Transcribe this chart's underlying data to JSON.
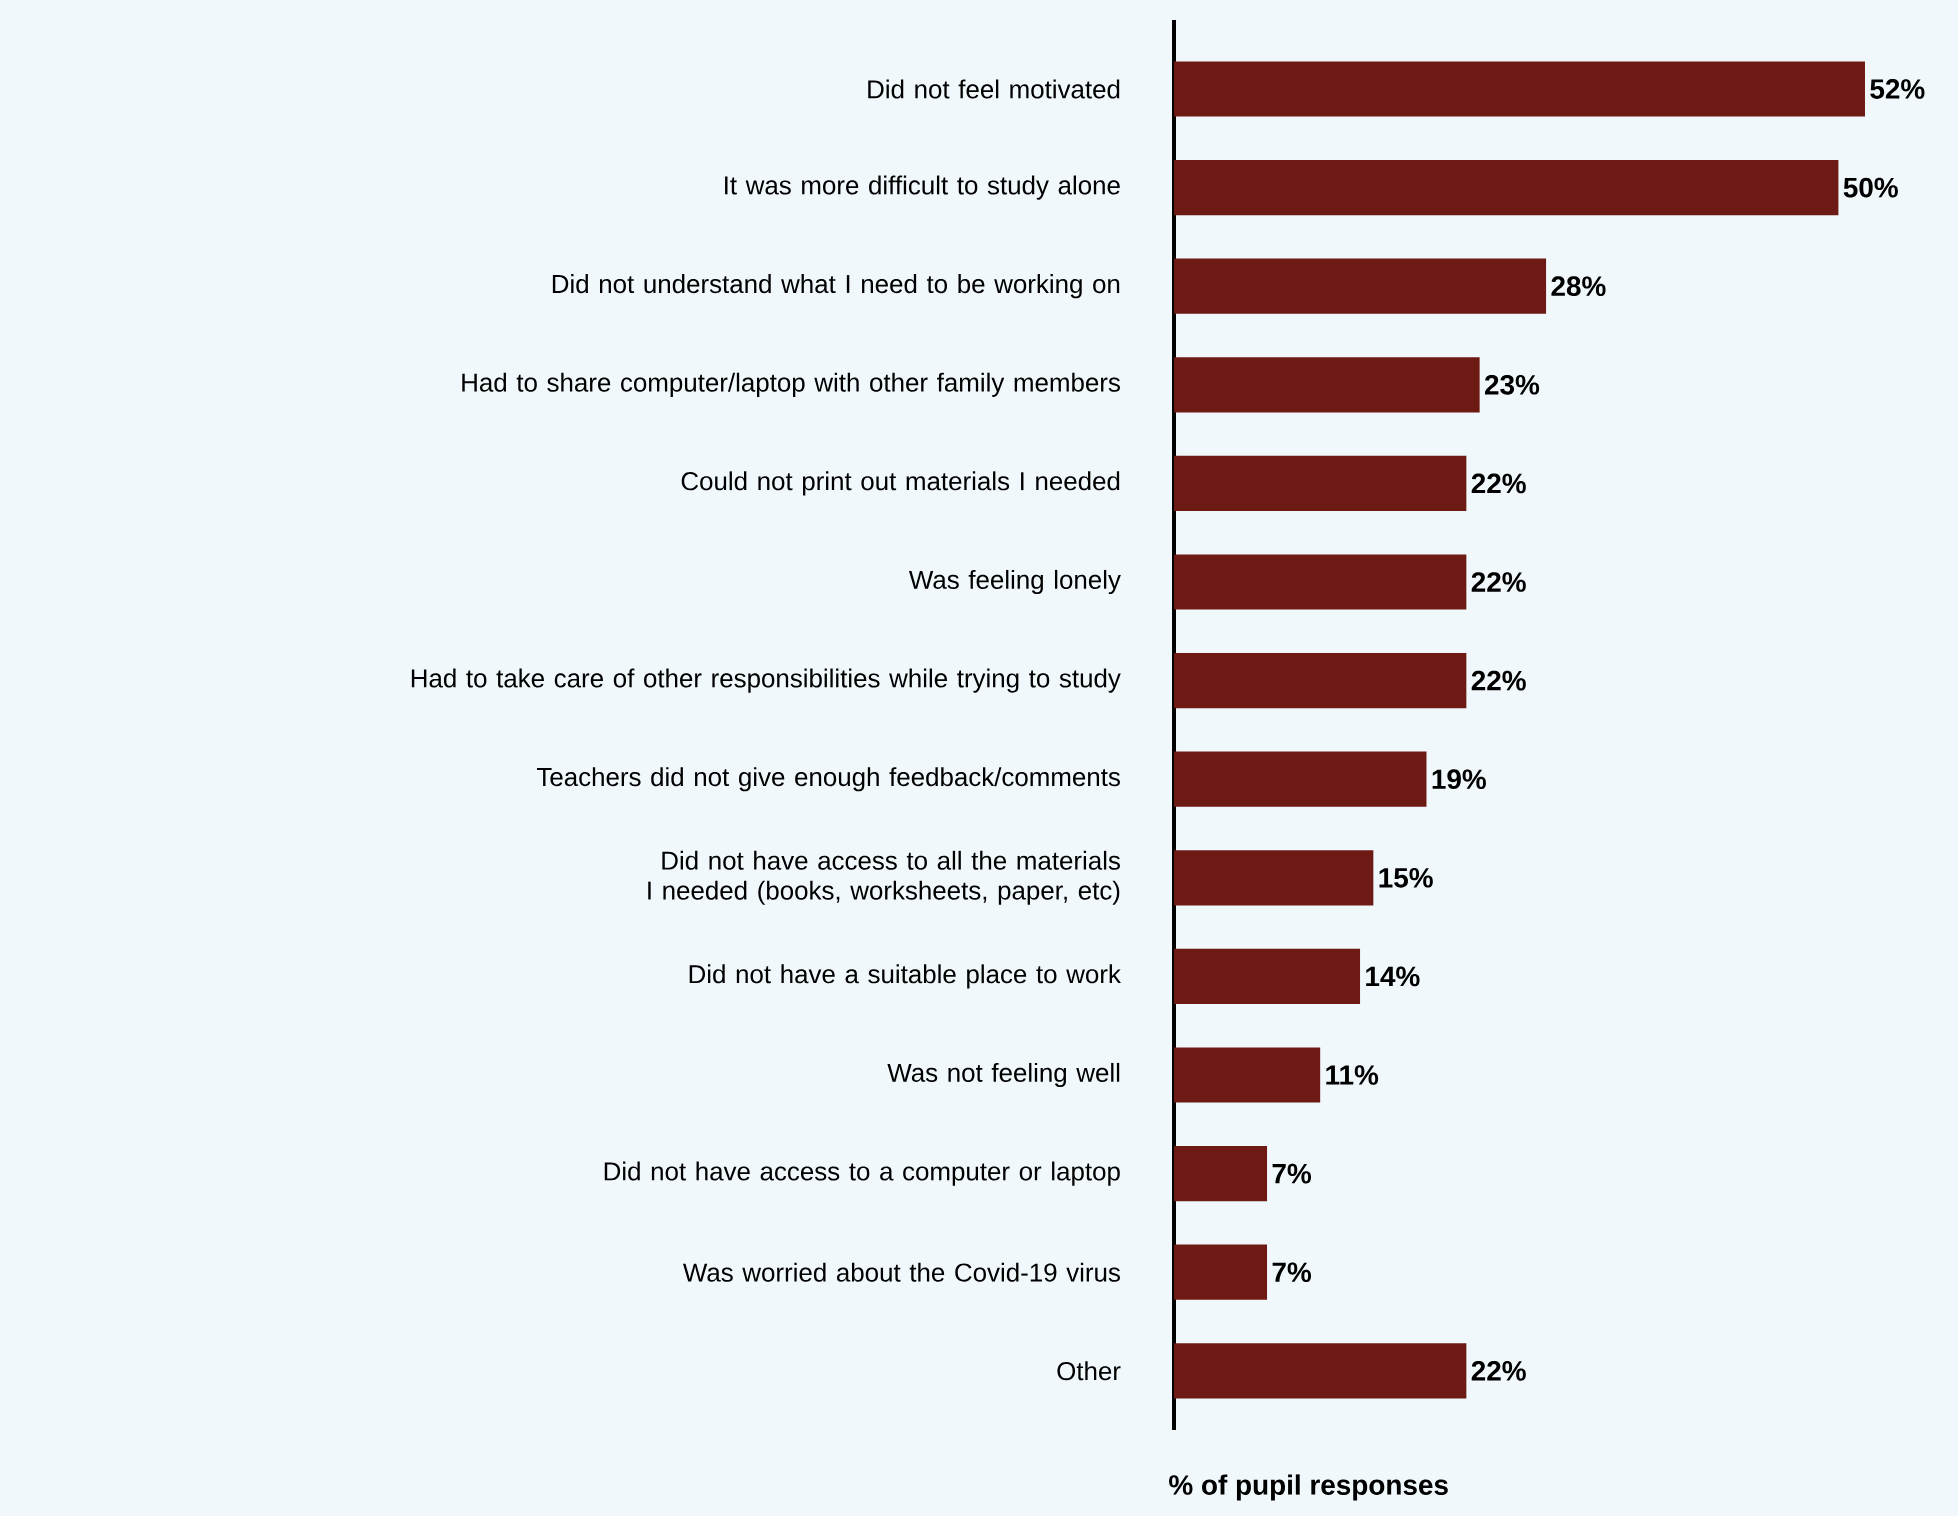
{
  "chart_data": {
    "type": "bar",
    "orientation": "horizontal",
    "xlabel": "% of pupil responses",
    "categories": [
      "Did not feel motivated",
      "It was more difficult to study alone",
      "Did not understand what I need to be working on",
      "Had to share computer/laptop with other family members",
      "Could not print out materials I needed",
      "Was feeling lonely",
      "Had to take care of other responsibilities while trying to study",
      "Teachers did not give enough feedback/comments",
      "Did not have access to all the materials I needed (books, worksheets, paper, etc)",
      "Did not have a suitable place to work",
      "Was not feeling well",
      "Did not have access to a computer or laptop",
      "Was worried about the Covid-19 virus",
      "Other"
    ],
    "values": [
      52,
      50,
      28,
      23,
      22,
      22,
      22,
      19,
      15,
      14,
      11,
      7,
      7,
      22
    ],
    "value_labels": [
      "52%",
      "50%",
      "28%",
      "23%",
      "22%",
      "22%",
      "22%",
      "19%",
      "15%",
      "14%",
      "11%",
      "7%",
      "7%",
      "22%"
    ],
    "color": "#6e1a14",
    "xlim": [
      0,
      59
    ]
  }
}
